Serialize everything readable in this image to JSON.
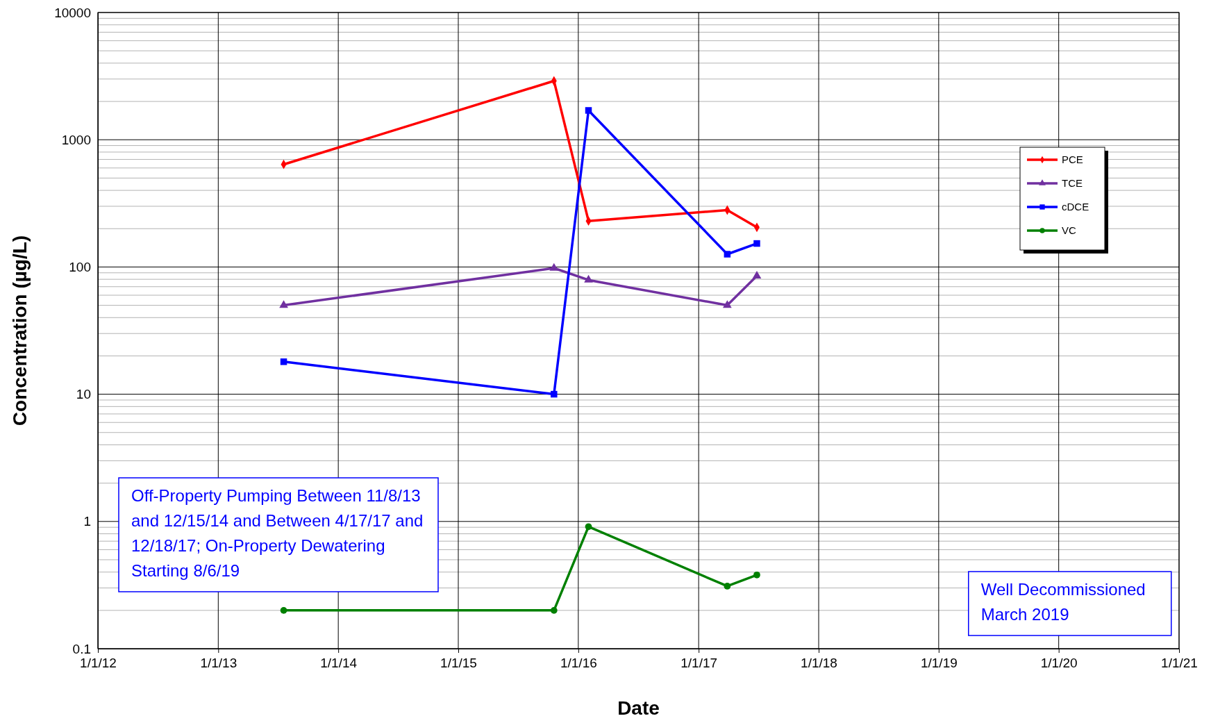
{
  "chart_data": {
    "type": "line",
    "xlabel": "Date",
    "ylabel": "Concentration (µg/L)",
    "log": "y",
    "grid": true,
    "legend": "top right",
    "line_style": "solid",
    "xlim": [
      "2012-01-01",
      "2021-01-01"
    ],
    "xticks": [
      {
        "value": "2012-01-01",
        "label": "1/1/12"
      },
      {
        "value": "2013-01-01",
        "label": "1/1/13"
      },
      {
        "value": "2014-01-01",
        "label": "1/1/14"
      },
      {
        "value": "2015-01-01",
        "label": "1/1/15"
      },
      {
        "value": "2016-01-01",
        "label": "1/1/16"
      },
      {
        "value": "2017-01-01",
        "label": "1/1/17"
      },
      {
        "value": "2018-01-01",
        "label": "1/1/18"
      },
      {
        "value": "2019-01-01",
        "label": "1/1/19"
      },
      {
        "value": "2020-01-01",
        "label": "1/1/20"
      },
      {
        "value": "2021-01-01",
        "label": "1/1/21"
      }
    ],
    "ylim": [
      0.1,
      10000
    ],
    "yticks": [
      0.1,
      {
        "value": 0.2,
        "label": null
      },
      {
        "value": 0.3,
        "label": null
      },
      {
        "value": 0.4,
        "label": null
      },
      {
        "value": 0.5,
        "label": null
      },
      {
        "value": 0.6,
        "label": null
      },
      {
        "value": 0.7,
        "label": null
      },
      {
        "value": 0.8,
        "label": null
      },
      {
        "value": 0.9,
        "label": null
      },
      1,
      {
        "value": 2,
        "label": null
      },
      {
        "value": 3,
        "label": null
      },
      {
        "value": 4,
        "label": null
      },
      {
        "value": 5,
        "label": null
      },
      {
        "value": 6,
        "label": null
      },
      {
        "value": 7,
        "label": null
      },
      {
        "value": 8,
        "label": null
      },
      {
        "value": 9,
        "label": null
      },
      10,
      {
        "value": 20,
        "label": null
      },
      {
        "value": 30,
        "label": null
      },
      {
        "value": 40,
        "label": null
      },
      {
        "value": 50,
        "label": null
      },
      {
        "value": 60,
        "label": null
      },
      {
        "value": 70,
        "label": null
      },
      {
        "value": 80,
        "label": null
      },
      {
        "value": 90,
        "label": null
      },
      100,
      {
        "value": 200,
        "label": null
      },
      {
        "value": 300,
        "label": null
      },
      {
        "value": 400,
        "label": null
      },
      {
        "value": 500,
        "label": null
      },
      {
        "value": 600,
        "label": null
      },
      {
        "value": 700,
        "label": null
      },
      {
        "value": 800,
        "label": null
      },
      {
        "value": 900,
        "label": null
      },
      1000,
      {
        "value": 2000,
        "label": null
      },
      {
        "value": 3000,
        "label": null
      },
      {
        "value": 4000,
        "label": null
      },
      {
        "value": 5000,
        "label": null
      },
      {
        "value": 6000,
        "label": null
      },
      {
        "value": 7000,
        "label": null
      },
      {
        "value": 8000,
        "label": null
      },
      {
        "value": 9000,
        "label": null
      },
      10000
    ],
    "x": [
      "2013-07-19",
      "2015-10-19",
      "2016-02-01",
      "2017-03-29",
      "2017-06-27"
    ],
    "series": [
      {
        "name": "PCE",
        "color": "#ff0000",
        "marker": "diamond",
        "values": [
          640,
          2900,
          230,
          280,
          205
        ]
      },
      {
        "name": "TCE",
        "color": "#7030a0",
        "marker": "triangle",
        "values": [
          50,
          98,
          79,
          50,
          85
        ]
      },
      {
        "name": "cDCE",
        "color": "#0000ff",
        "marker": "square",
        "values": [
          18,
          10,
          1700,
          126,
          153
        ]
      },
      {
        "name": "VC",
        "color": "#008000",
        "marker": "circle",
        "values": [
          0.2,
          0.2,
          0.91,
          0.31,
          0.38
        ]
      }
    ],
    "annotations": [
      "Off-Property Pumping Between 11/8/13 and 12/15/14 and Between 4/17/17 and 12/18/17; On-Property Dewatering Starting 8/6/19",
      "Well Decommissioned March 2019"
    ]
  }
}
